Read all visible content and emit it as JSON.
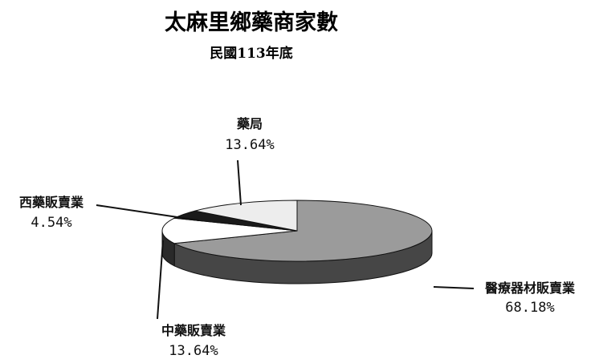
{
  "chart_data": {
    "type": "pie",
    "title": "太麻里鄉藥商家數",
    "subtitle": "民國113年底",
    "slices": [
      {
        "name": "醫療器材販賣業",
        "value": 68.18,
        "label": "68.18%",
        "color": "#9b9b9b"
      },
      {
        "name": "中藥販賣業",
        "value": 13.64,
        "label": "13.64%",
        "color": "#ffffff"
      },
      {
        "name": "西藥販賣業",
        "value": 4.54,
        "label": "4.54%",
        "color": "#1a1a1a"
      },
      {
        "name": "藥局",
        "value": 13.64,
        "label": "13.64%",
        "color": "#ededed"
      }
    ]
  }
}
